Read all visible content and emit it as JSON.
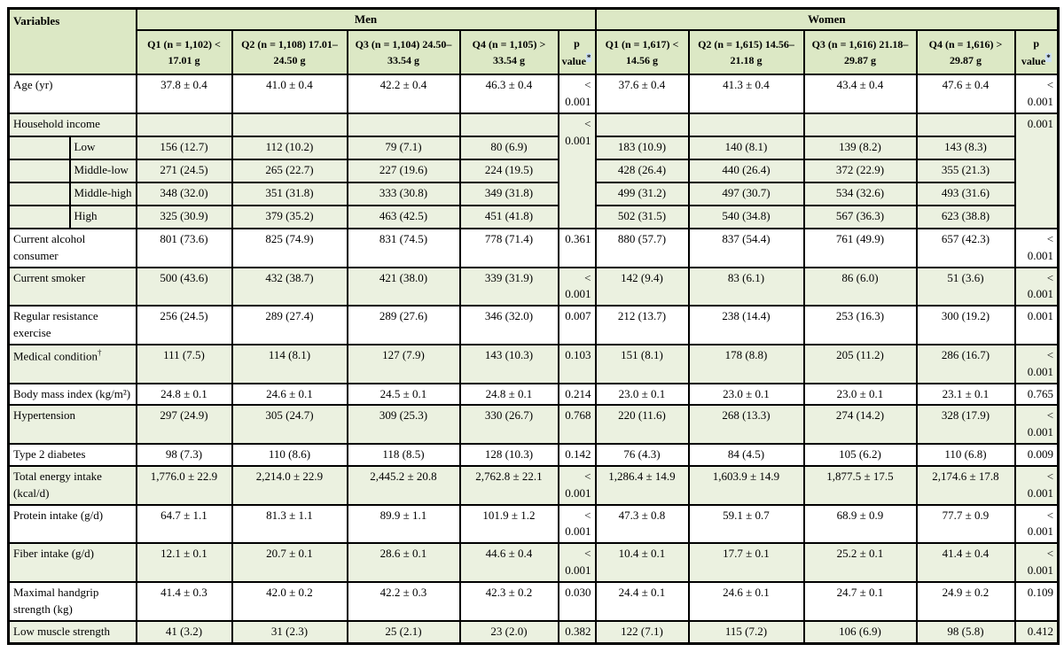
{
  "table": {
    "header": {
      "variables": "Variables",
      "men": "Men",
      "women": "Women",
      "men_cols": [
        "Q1 (n = 1,102) < 17.01 g",
        "Q2 (n = 1,108) 17.01–24.50 g",
        "Q3 (n = 1,104) 24.50–33.54 g",
        "Q4 (n = 1,105) > 33.54 g"
      ],
      "women_cols": [
        "Q1 (n = 1,617) < 14.56 g",
        "Q2 (n = 1,615) 14.56–21.18 g",
        "Q3 (n = 1,616) 21.18–29.87 g",
        "Q4 (n = 1,616) > 29.87 g"
      ],
      "p_line1": "p",
      "p_line2": "value",
      "p_sup": "*"
    },
    "rows": [
      {
        "type": "data",
        "label": "Age (yr)",
        "men": [
          "37.8 ± 0.4",
          "41.0 ± 0.4",
          "42.2 ± 0.4",
          "46.3 ± 0.4"
        ],
        "men_p": "< 0.001",
        "women": [
          "37.6 ± 0.4",
          "41.3 ± 0.4",
          "43.4 ± 0.4",
          "47.6 ± 0.4"
        ],
        "women_p": "< 0.001"
      },
      {
        "type": "group",
        "label": "Household income",
        "span": 5,
        "men": [
          "",
          "",
          "",
          ""
        ],
        "men_p": "< 0.001",
        "women": [
          "",
          "",
          "",
          ""
        ],
        "women_p": "0.001"
      },
      {
        "type": "sub",
        "label": "Low",
        "men": [
          "156 (12.7)",
          "112 (10.2)",
          "79 (7.1)",
          "80 (6.9)"
        ],
        "women": [
          "183 (10.9)",
          "140 (8.1)",
          "139 (8.2)",
          "143 (8.3)"
        ]
      },
      {
        "type": "sub",
        "label": "Middle-low",
        "men": [
          "271 (24.5)",
          "265 (22.7)",
          "227 (19.6)",
          "224 (19.5)"
        ],
        "women": [
          "428 (26.4)",
          "440 (26.4)",
          "372 (22.9)",
          "355 (21.3)"
        ]
      },
      {
        "type": "sub",
        "label": "Middle-high",
        "men": [
          "348 (32.0)",
          "351 (31.8)",
          "333 (30.8)",
          "349 (31.8)"
        ],
        "women": [
          "499 (31.2)",
          "497 (30.7)",
          "534 (32.6)",
          "493 (31.6)"
        ]
      },
      {
        "type": "sub",
        "label": "High",
        "men": [
          "325 (30.9)",
          "379 (35.2)",
          "463 (42.5)",
          "451 (41.8)"
        ],
        "women": [
          "502 (31.5)",
          "540 (34.8)",
          "567 (36.3)",
          "623 (38.8)"
        ]
      },
      {
        "type": "data",
        "label": "Current alcohol consumer",
        "men": [
          "801 (73.6)",
          "825 (74.9)",
          "831 (74.5)",
          "778 (71.4)"
        ],
        "men_p": "0.361",
        "women": [
          "880 (57.7)",
          "837 (54.4)",
          "761 (49.9)",
          "657 (42.3)"
        ],
        "women_p": "< 0.001"
      },
      {
        "type": "data",
        "label": "Current smoker",
        "men": [
          "500 (43.6)",
          "432 (38.7)",
          "421 (38.0)",
          "339 (31.9)"
        ],
        "men_p": "< 0.001",
        "women": [
          "142 (9.4)",
          "83 (6.1)",
          "86 (6.0)",
          "51 (3.6)"
        ],
        "women_p": "< 0.001"
      },
      {
        "type": "data",
        "label": "Regular resistance exercise",
        "men": [
          "256 (24.5)",
          "289 (27.4)",
          "289 (27.6)",
          "346 (32.0)"
        ],
        "men_p": "0.007",
        "women": [
          "212 (13.7)",
          "238 (14.4)",
          "253 (16.3)",
          "300 (19.2)"
        ],
        "women_p": "0.001"
      },
      {
        "type": "data",
        "label": "Medical condition",
        "label_sup": "†",
        "men": [
          "111 (7.5)",
          "114 (8.1)",
          "127 (7.9)",
          "143 (10.3)"
        ],
        "men_p": "0.103",
        "women": [
          "151 (8.1)",
          "178 (8.8)",
          "205 (11.2)",
          "286 (16.7)"
        ],
        "women_p": "< 0.001"
      },
      {
        "type": "data",
        "compact": true,
        "label": "Body mass index (kg/m²)",
        "men": [
          "24.8 ± 0.1",
          "24.6 ± 0.1",
          "24.5 ± 0.1",
          "24.8 ± 0.1"
        ],
        "men_p": "0.214",
        "women": [
          "23.0 ± 0.1",
          "23.0 ± 0.1",
          "23.0 ± 0.1",
          "23.1 ± 0.1"
        ],
        "women_p": "0.765"
      },
      {
        "type": "data",
        "label": "Hypertension",
        "men": [
          "297 (24.9)",
          "305 (24.7)",
          "309 (25.3)",
          "330 (26.7)"
        ],
        "men_p": "0.768",
        "women": [
          "220 (11.6)",
          "268 (13.3)",
          "274 (14.2)",
          "328 (17.9)"
        ],
        "women_p": "< 0.001"
      },
      {
        "type": "data",
        "compact": true,
        "label": "Type 2 diabetes",
        "men": [
          "98 (7.3)",
          "110 (8.6)",
          "118 (8.5)",
          "128 (10.3)"
        ],
        "men_p": "0.142",
        "women": [
          "76 (4.3)",
          "84 (4.5)",
          "105 (6.2)",
          "110 (6.8)"
        ],
        "women_p": "0.009"
      },
      {
        "type": "data",
        "label": "Total energy intake (kcal/d)",
        "men": [
          "1,776.0 ± 22.9",
          "2,214.0 ± 22.9",
          "2,445.2 ± 20.8",
          "2,762.8 ± 22.1"
        ],
        "men_p": "< 0.001",
        "women": [
          "1,286.4 ± 14.9",
          "1,603.9 ± 14.9",
          "1,877.5 ± 17.5",
          "2,174.6 ± 17.8"
        ],
        "women_p": "< 0.001"
      },
      {
        "type": "data",
        "label": "Protein intake (g/d)",
        "men": [
          "64.7 ± 1.1",
          "81.3 ± 1.1",
          "89.9 ± 1.1",
          "101.9 ± 1.2"
        ],
        "men_p": "< 0.001",
        "women": [
          "47.3 ± 0.8",
          "59.1 ± 0.7",
          "68.9 ± 0.9",
          "77.7 ± 0.9"
        ],
        "women_p": "< 0.001"
      },
      {
        "type": "data",
        "label": "Fiber intake (g/d)",
        "men": [
          "12.1 ± 0.1",
          "20.7 ± 0.1",
          "28.6 ± 0.1",
          "44.6 ± 0.4"
        ],
        "men_p": "< 0.001",
        "women": [
          "10.4 ± 0.1",
          "17.7 ± 0.1",
          "25.2 ± 0.1",
          "41.4 ± 0.4"
        ],
        "women_p": "< 0.001"
      },
      {
        "type": "data",
        "label": "Maximal handgrip strength (kg)",
        "men": [
          "41.4 ± 0.3",
          "42.0 ± 0.2",
          "42.2 ± 0.3",
          "42.3 ± 0.2"
        ],
        "men_p": "0.030",
        "women": [
          "24.4 ± 0.1",
          "24.6 ± 0.1",
          "24.7 ± 0.1",
          "24.9 ± 0.2"
        ],
        "women_p": "0.109"
      },
      {
        "type": "data",
        "compact": true,
        "label": "Low muscle strength",
        "men": [
          "41 (3.2)",
          "31 (2.3)",
          "25 (2.1)",
          "23 (2.0)"
        ],
        "men_p": "0.382",
        "women": [
          "122 (7.1)",
          "115 (7.2)",
          "106 (6.9)",
          "98 (5.8)"
        ],
        "women_p": "0.412"
      }
    ]
  },
  "colors": {
    "header_bg": "#dce8c5",
    "shaded_row_bg": "#ebf1e0",
    "border": "#000000",
    "asterisk_highlight": "#cfe2f3"
  }
}
